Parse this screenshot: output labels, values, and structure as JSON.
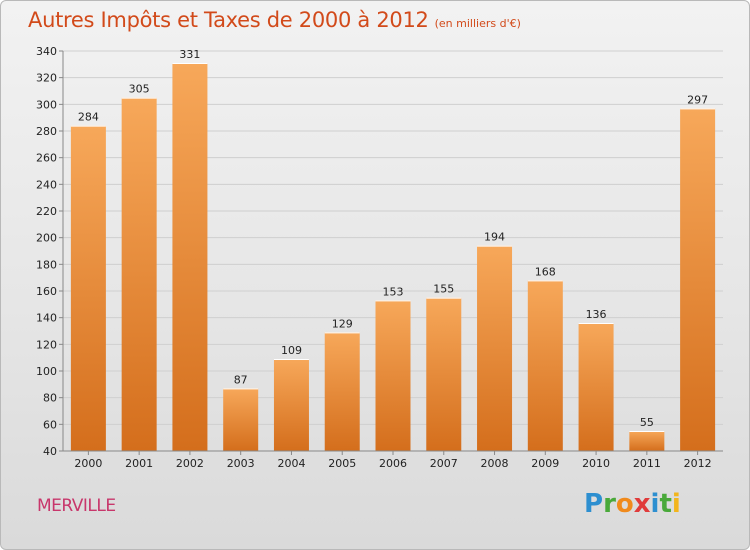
{
  "title": "Autres Impôts et Taxes de 2000 à 2012",
  "subtitle": "(en milliers d'€)",
  "town": "MERVILLE",
  "brand": [
    "P",
    "r",
    "o",
    "x",
    "i",
    "t",
    "i"
  ],
  "colors": {
    "title": "#d24a1a",
    "bar_light": "#f7a85a",
    "bar_dark": "#d46e1c",
    "town": "#c8366b"
  },
  "chart_data": {
    "type": "bar",
    "categories": [
      "2000",
      "2001",
      "2002",
      "2003",
      "2004",
      "2005",
      "2006",
      "2007",
      "2008",
      "2009",
      "2010",
      "2011",
      "2012"
    ],
    "values": [
      284,
      305,
      331,
      87,
      109,
      129,
      153,
      155,
      194,
      168,
      136,
      55,
      297
    ],
    "title": "Autres Impôts et Taxes de 2000 à 2012",
    "subtitle": "(en milliers d'€)",
    "ylim": [
      40,
      340
    ],
    "yticks": [
      40,
      60,
      80,
      100,
      120,
      140,
      160,
      180,
      200,
      220,
      240,
      260,
      280,
      300,
      320,
      340
    ],
    "grid": true,
    "legend": "none"
  }
}
